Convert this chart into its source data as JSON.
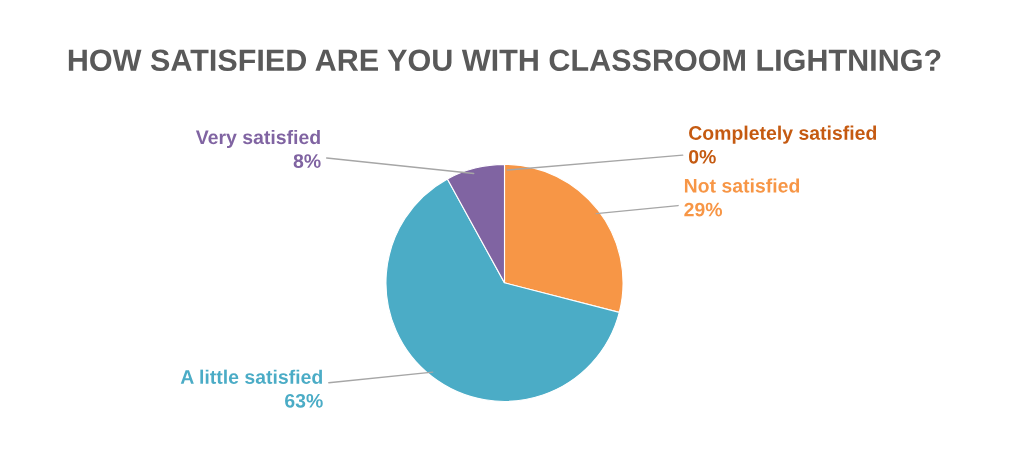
{
  "chart_data": {
    "type": "pie",
    "title": "HOW SATISFIED ARE YOU WITH CLASSROOM LIGHTNING?",
    "categories": [
      "Completely satisfied",
      "Not satisfied",
      "A little satisfied",
      "Very satisfied"
    ],
    "values": [
      0,
      29,
      63,
      8
    ],
    "value_labels": [
      "0%",
      "29%",
      "63%",
      "8%"
    ],
    "colors": [
      "#c55a11",
      "#f79646",
      "#4bacc6",
      "#8064a2"
    ],
    "legend": false
  }
}
